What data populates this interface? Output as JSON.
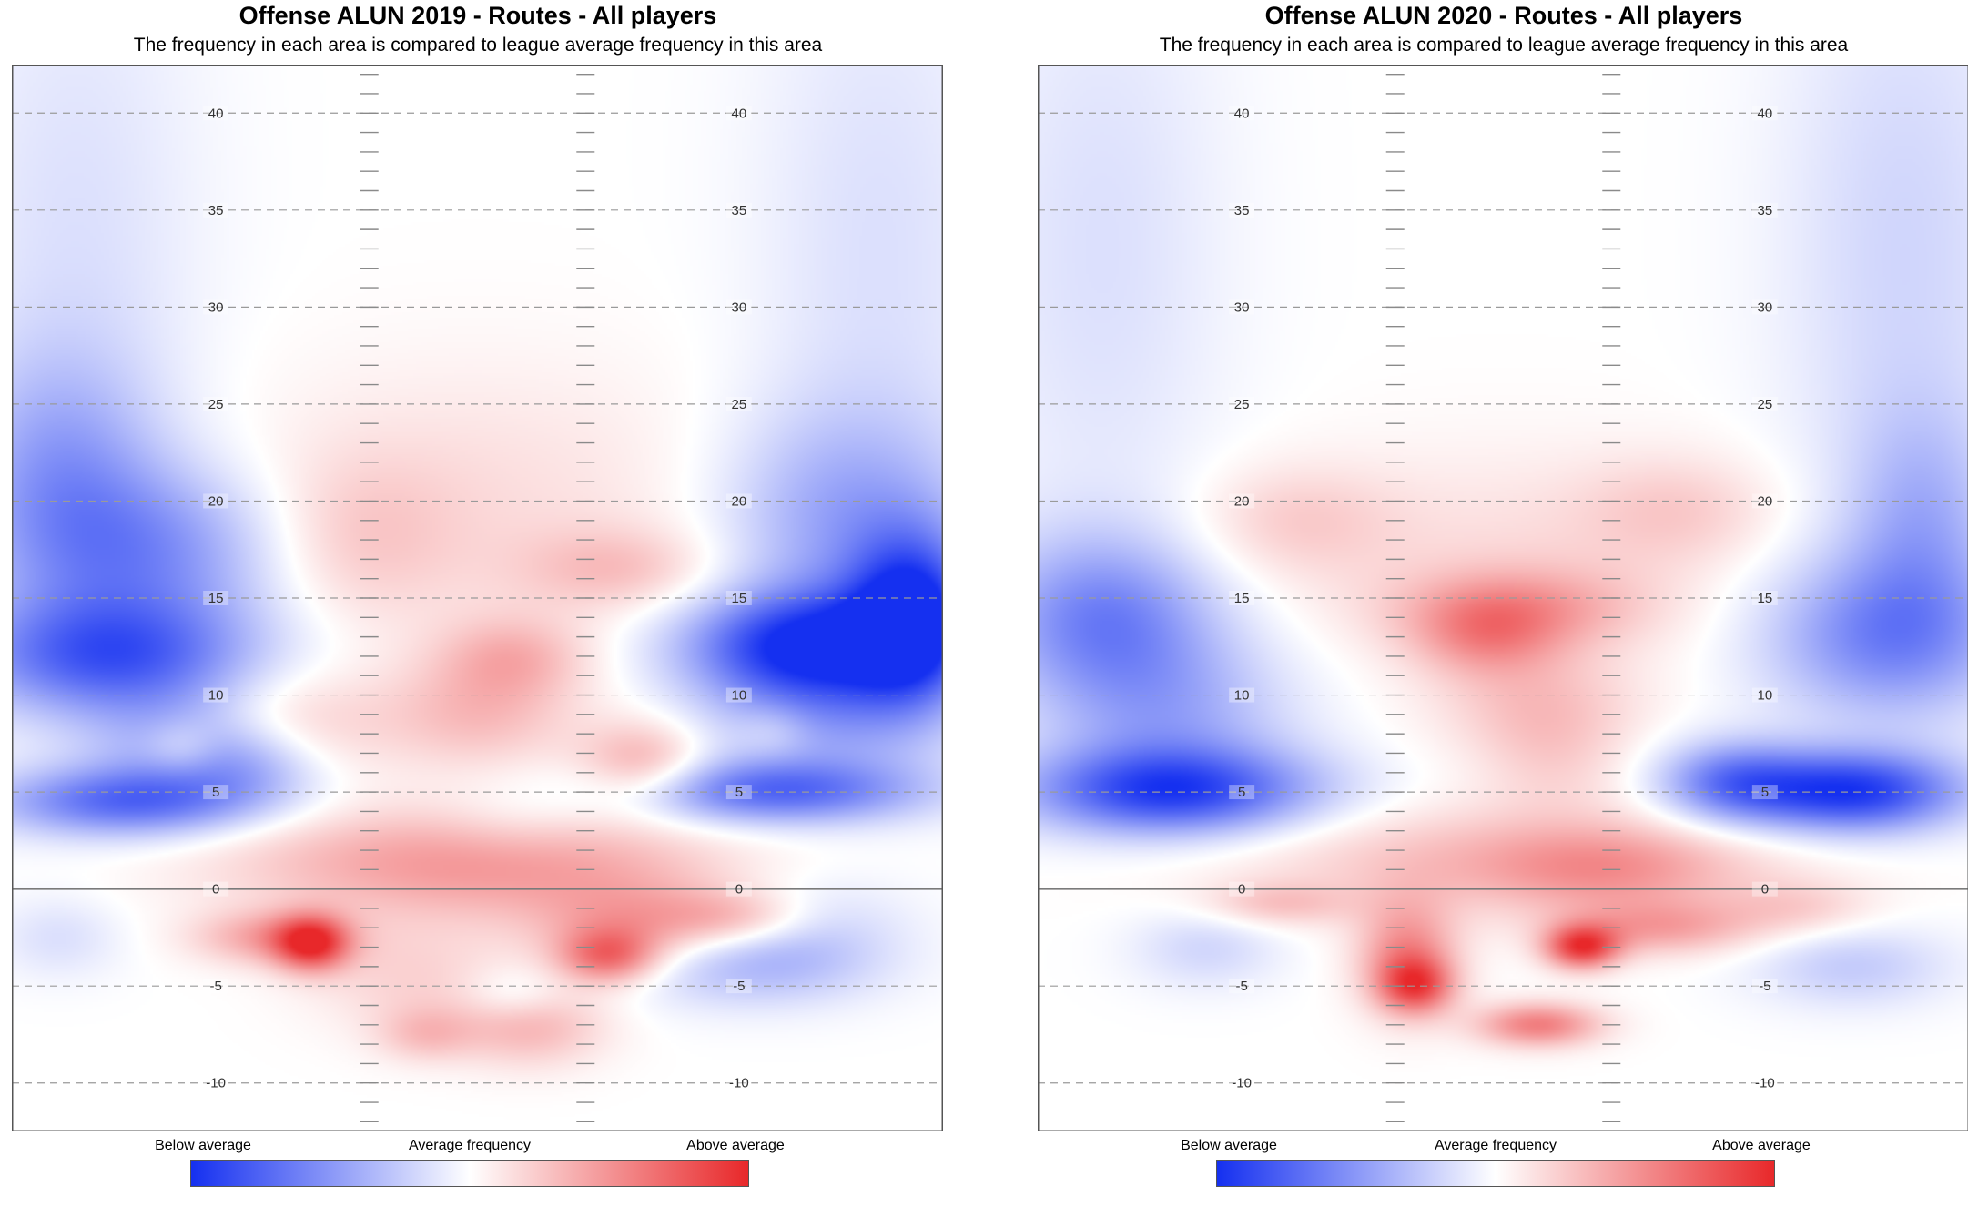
{
  "chart_data": [
    {
      "type": "heatmap",
      "title": "Offense ALUN 2019 - Routes - All players",
      "subtitle": "The frequency in each area is compared to league average frequency in this area",
      "y_ticks": [
        40,
        35,
        30,
        25,
        20,
        15,
        10,
        5,
        0,
        -5,
        -10
      ],
      "y_tick_labels": [
        "40",
        "35",
        "30",
        "25",
        "20",
        "15",
        "10",
        "5",
        "0",
        "-5",
        "-10"
      ],
      "ylim": [
        -12.5,
        42.5
      ],
      "xlim": [
        -26.7,
        26.7
      ],
      "hash_marks_x": [
        -6.2,
        6.2
      ],
      "line_of_scrimmage": 0,
      "legend": {
        "labels": [
          "Below average",
          "Average frequency",
          "Above average"
        ],
        "colors": [
          "#1530f0",
          "#ffffff",
          "#e8282a"
        ]
      },
      "hotspots": [
        {
          "x": -23,
          "y": 33,
          "v": -0.15,
          "sx": 5,
          "sy": 12
        },
        {
          "x": 23,
          "y": 33,
          "v": -0.15,
          "sx": 5,
          "sy": 12
        },
        {
          "x": -21,
          "y": 12,
          "v": -0.75,
          "sx": 6,
          "sy": 2.2
        },
        {
          "x": -19,
          "y": 17.5,
          "v": -0.5,
          "sx": 6,
          "sy": 3
        },
        {
          "x": -24,
          "y": 22,
          "v": -0.35,
          "sx": 4,
          "sy": 4
        },
        {
          "x": 19,
          "y": 12.5,
          "v": -1.0,
          "sx": 5,
          "sy": 2
        },
        {
          "x": 25,
          "y": 14,
          "v": -0.9,
          "sx": 2.5,
          "sy": 3
        },
        {
          "x": 21,
          "y": 19,
          "v": -0.4,
          "sx": 5,
          "sy": 4
        },
        {
          "x": -20,
          "y": 4.5,
          "v": -0.7,
          "sx": 5.5,
          "sy": 1.3
        },
        {
          "x": 17,
          "y": 5,
          "v": -0.7,
          "sx": 6,
          "sy": 1.2
        },
        {
          "x": -17,
          "y": 7.5,
          "v": -0.3,
          "sx": 4,
          "sy": 2
        },
        {
          "x": 20,
          "y": 8.5,
          "v": -0.35,
          "sx": 5,
          "sy": 2
        },
        {
          "x": -13,
          "y": 6.5,
          "v": -0.3,
          "sx": 3,
          "sy": 1.5
        },
        {
          "x": 15,
          "y": -4,
          "v": -0.3,
          "sx": 5,
          "sy": 1.5
        },
        {
          "x": 19,
          "y": -2,
          "v": -0.2,
          "sx": 4,
          "sy": 2
        },
        {
          "x": -24,
          "y": -2.5,
          "v": -0.15,
          "sx": 2.5,
          "sy": 1.5
        },
        {
          "x": 2,
          "y": -5.5,
          "v": -0.2,
          "sx": 2,
          "sy": 1
        },
        {
          "x": 2,
          "y": 3.5,
          "v": -0.1,
          "sx": 3,
          "sy": 1.5
        },
        {
          "x": 0,
          "y": 20,
          "v": 0.15,
          "sx": 10,
          "sy": 5
        },
        {
          "x": -7,
          "y": 18,
          "v": 0.2,
          "sx": 4,
          "sy": 3
        },
        {
          "x": 8,
          "y": 16.5,
          "v": 0.25,
          "sx": 4,
          "sy": 1.5
        },
        {
          "x": 2,
          "y": 12,
          "v": 0.3,
          "sx": 3,
          "sy": 1.5
        },
        {
          "x": 0,
          "y": 9,
          "v": 0.3,
          "sx": 4,
          "sy": 2
        },
        {
          "x": -11,
          "y": 8.5,
          "v": 0.25,
          "sx": 4,
          "sy": 2
        },
        {
          "x": 9.5,
          "y": 6.5,
          "v": 0.4,
          "sx": 2.5,
          "sy": 1.5
        },
        {
          "x": -17,
          "y": 7.3,
          "v": 0.2,
          "sx": 1.5,
          "sy": 1
        },
        {
          "x": 17,
          "y": 8.2,
          "v": 0.15,
          "sx": 1.5,
          "sy": 1
        },
        {
          "x": -5,
          "y": 1.5,
          "v": 0.3,
          "sx": 8,
          "sy": 2
        },
        {
          "x": 5,
          "y": 1,
          "v": 0.3,
          "sx": 8,
          "sy": 2
        },
        {
          "x": -9.5,
          "y": -2.8,
          "v": 0.8,
          "sx": 1.5,
          "sy": 1
        },
        {
          "x": -12,
          "y": -2.5,
          "v": 0.4,
          "sx": 3,
          "sy": 1
        },
        {
          "x": 7.5,
          "y": -3.5,
          "v": 0.6,
          "sx": 2,
          "sy": 1
        },
        {
          "x": 9,
          "y": -2,
          "v": 0.35,
          "sx": 4,
          "sy": 1.5
        },
        {
          "x": 15,
          "y": -1.5,
          "v": 0.3,
          "sx": 3,
          "sy": 1
        },
        {
          "x": 3,
          "y": -7,
          "v": 0.35,
          "sx": 3,
          "sy": 1.5
        },
        {
          "x": -3,
          "y": -7.5,
          "v": 0.25,
          "sx": 2,
          "sy": 1
        },
        {
          "x": -4,
          "y": -4.5,
          "v": 0.2,
          "sx": 4,
          "sy": 2
        }
      ]
    },
    {
      "type": "heatmap",
      "title": "Offense ALUN 2020 - Routes - All players",
      "subtitle": "The frequency in each area is compared to league average frequency in this area",
      "y_ticks": [
        40,
        35,
        30,
        25,
        20,
        15,
        10,
        5,
        0,
        -5,
        -10
      ],
      "y_tick_labels": [
        "40",
        "35",
        "30",
        "25",
        "20",
        "15",
        "10",
        "5",
        "0",
        "-5",
        "-10"
      ],
      "ylim": [
        -12.5,
        42.5
      ],
      "xlim": [
        -26.7,
        26.7
      ],
      "hash_marks_x": [
        -6.2,
        6.2
      ],
      "line_of_scrimmage": 0,
      "legend": {
        "labels": [
          "Below average",
          "Average frequency",
          "Above average"
        ],
        "colors": [
          "#1530f0",
          "#ffffff",
          "#e8282a"
        ]
      },
      "hotspots": [
        {
          "x": -23,
          "y": 33,
          "v": -0.15,
          "sx": 5,
          "sy": 12
        },
        {
          "x": 23,
          "y": 33,
          "v": -0.2,
          "sx": 5,
          "sy": 12
        },
        {
          "x": -23,
          "y": 14,
          "v": -0.55,
          "sx": 4.5,
          "sy": 3
        },
        {
          "x": -19,
          "y": 9,
          "v": -0.35,
          "sx": 5,
          "sy": 3
        },
        {
          "x": 22,
          "y": 13,
          "v": -0.55,
          "sx": 5,
          "sy": 3
        },
        {
          "x": 24,
          "y": 19,
          "v": -0.3,
          "sx": 3,
          "sy": 4
        },
        {
          "x": -19,
          "y": 5,
          "v": -0.85,
          "sx": 6,
          "sy": 1.6
        },
        {
          "x": 20,
          "y": 5,
          "v": -0.95,
          "sx": 4.5,
          "sy": 1.5
        },
        {
          "x": 13,
          "y": 5.5,
          "v": -0.55,
          "sx": 3,
          "sy": 1.5
        },
        {
          "x": -17,
          "y": -3,
          "v": -0.2,
          "sx": 3,
          "sy": 1.5
        },
        {
          "x": 20,
          "y": -4,
          "v": -0.25,
          "sx": 4,
          "sy": 1.5
        },
        {
          "x": -12,
          "y": 19,
          "v": 0.2,
          "sx": 4,
          "sy": 2
        },
        {
          "x": 10,
          "y": 19.5,
          "v": 0.2,
          "sx": 4,
          "sy": 2
        },
        {
          "x": 0,
          "y": 17,
          "v": 0.15,
          "sx": 9,
          "sy": 4
        },
        {
          "x": 1,
          "y": 14.5,
          "v": 0.35,
          "sx": 5,
          "sy": 1.5
        },
        {
          "x": -1,
          "y": 13,
          "v": 0.35,
          "sx": 3,
          "sy": 1.5
        },
        {
          "x": 2,
          "y": 9.5,
          "v": 0.25,
          "sx": 4,
          "sy": 2
        },
        {
          "x": 3,
          "y": 6.5,
          "v": 0.15,
          "sx": 3,
          "sy": 2
        },
        {
          "x": 0,
          "y": 1.5,
          "v": 0.3,
          "sx": 11,
          "sy": 2
        },
        {
          "x": 6,
          "y": 1,
          "v": 0.3,
          "sx": 5,
          "sy": 1.5
        },
        {
          "x": -5.5,
          "y": -3.5,
          "v": 0.55,
          "sx": 2,
          "sy": 2
        },
        {
          "x": -5,
          "y": -5,
          "v": 0.6,
          "sx": 1.5,
          "sy": 1
        },
        {
          "x": 2,
          "y": -7,
          "v": 0.6,
          "sx": 2.5,
          "sy": 0.8
        },
        {
          "x": 4.5,
          "y": -3,
          "v": 0.85,
          "sx": 1.5,
          "sy": 0.8
        },
        {
          "x": 9,
          "y": -2,
          "v": 0.4,
          "sx": 4,
          "sy": 1
        },
        {
          "x": -13,
          "y": -0.8,
          "v": 0.25,
          "sx": 3,
          "sy": 0.8
        },
        {
          "x": 17,
          "y": -1,
          "v": 0.2,
          "sx": 3,
          "sy": 1
        }
      ]
    }
  ]
}
